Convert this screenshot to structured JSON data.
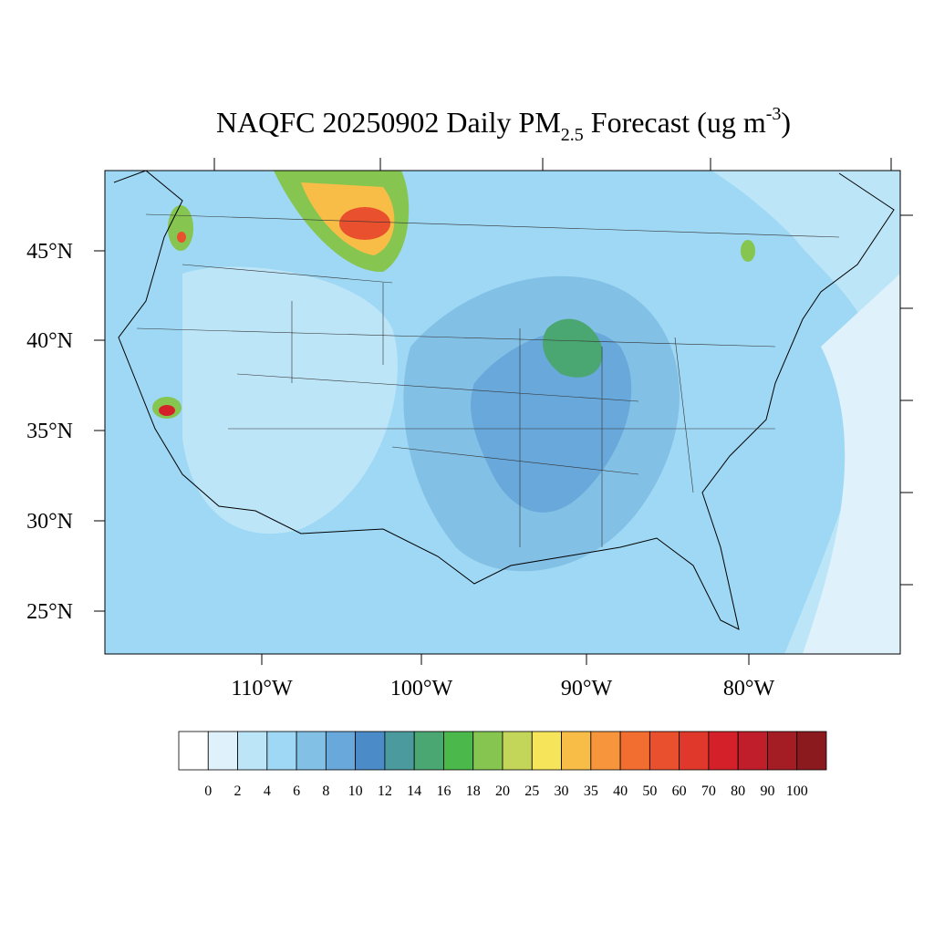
{
  "title": {
    "main": "NAQFC 20250902 Daily PM",
    "subscript": "2.5",
    "rest": " Forecast (ug m",
    "superscript": "-3",
    "end": ")"
  },
  "lat_labels": [
    "45°N",
    "40°N",
    "35°N",
    "30°N",
    "25°N"
  ],
  "lon_labels": [
    "110°W",
    "100°W",
    "90°W",
    "80°W"
  ],
  "colorbar": {
    "levels": [
      0,
      2,
      4,
      6,
      8,
      10,
      12,
      14,
      16,
      18,
      20,
      25,
      30,
      35,
      40,
      50,
      60,
      70,
      80,
      90,
      100
    ],
    "colors": [
      "#ffffff",
      "#dff1fb",
      "#bde5f8",
      "#9ed8f4",
      "#83c0e6",
      "#68a8da",
      "#4b8cc8",
      "#4b9a9e",
      "#4aa771",
      "#4ab84a",
      "#86c650",
      "#c3d65a",
      "#f6e45a",
      "#f8bd47",
      "#f6953c",
      "#f26d30",
      "#e9502d",
      "#e0382b",
      "#d42029",
      "#bf1e2a",
      "#a51d24",
      "#8b1a1e"
    ]
  }
}
